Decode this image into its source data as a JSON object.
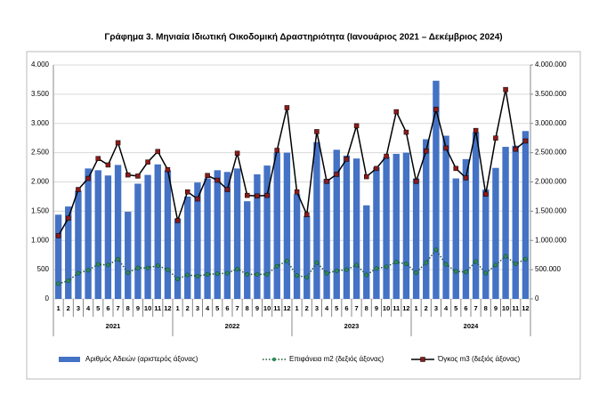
{
  "chart_data": {
    "type": "bar_line",
    "title": "Γράφημα 3. Μηνιαία Ιδιωτική Οικοδομική Δραστηριότητα (Ιανουάριος 2021 – Δεκέμβριος 2024)",
    "categories": [
      "1",
      "2",
      "3",
      "4",
      "5",
      "6",
      "7",
      "8",
      "9",
      "10",
      "11",
      "12",
      "1",
      "2",
      "3",
      "4",
      "5",
      "6",
      "7",
      "8",
      "9",
      "10",
      "11",
      "12",
      "1",
      "2",
      "3",
      "4",
      "5",
      "6",
      "7",
      "8",
      "9",
      "10",
      "11",
      "12",
      "1",
      "2",
      "3",
      "4",
      "5",
      "6",
      "7",
      "8",
      "9",
      "10",
      "11",
      "12"
    ],
    "year_labels": [
      "2021",
      "2022",
      "2023",
      "2024"
    ],
    "series": [
      {
        "name": "Αριθμός Αδειών (αριστερός άξονας)",
        "kind": "bar",
        "axis": "y",
        "color": "#4472c4",
        "values": [
          1440,
          1580,
          1850,
          2230,
          2200,
          2110,
          2290,
          1490,
          1970,
          2120,
          2300,
          2200,
          1370,
          1750,
          1990,
          2060,
          2200,
          2170,
          2230,
          1670,
          2130,
          2280,
          2500,
          2500,
          1790,
          1420,
          2680,
          2050,
          2550,
          2450,
          2400,
          1600,
          2250,
          2430,
          2480,
          2500,
          2060,
          2730,
          3730,
          2790,
          2060,
          2390,
          2850,
          1870,
          2240,
          2600,
          2620,
          2870
        ]
      },
      {
        "name": "Επιφάνεια m2 (δεξιός άξονας)",
        "kind": "dotted",
        "axis": "y2",
        "color": "#1e5631",
        "values": [
          260000,
          310000,
          440000,
          490000,
          590000,
          580000,
          680000,
          450000,
          530000,
          530000,
          570000,
          500000,
          340000,
          410000,
          390000,
          420000,
          430000,
          440000,
          510000,
          420000,
          420000,
          420000,
          560000,
          650000,
          400000,
          370000,
          620000,
          440000,
          480000,
          500000,
          580000,
          410000,
          520000,
          550000,
          630000,
          600000,
          450000,
          620000,
          840000,
          590000,
          470000,
          460000,
          640000,
          440000,
          580000,
          730000,
          600000,
          680000
        ]
      },
      {
        "name": "Όγκος m3 (δεξιός άξονας)",
        "kind": "line",
        "axis": "y2",
        "color": "#000000",
        "marker_color": "#8b1a1a",
        "values": [
          1080000,
          1380000,
          1870000,
          2060000,
          2400000,
          2290000,
          2670000,
          2120000,
          2100000,
          2340000,
          2520000,
          2210000,
          1340000,
          1830000,
          1710000,
          2110000,
          2030000,
          1870000,
          2490000,
          1770000,
          1760000,
          1770000,
          2540000,
          3270000,
          1830000,
          1440000,
          2860000,
          2010000,
          2130000,
          2390000,
          2960000,
          2090000,
          2230000,
          2440000,
          3200000,
          2850000,
          2010000,
          2530000,
          3240000,
          2580000,
          2230000,
          2070000,
          2880000,
          1790000,
          2750000,
          3580000,
          2560000,
          2700000
        ]
      }
    ],
    "ylim": [
      0,
      4000
    ],
    "yticks": [
      0,
      500,
      {
        "value": 1000,
        "label": "1.000"
      },
      {
        "value": 1500,
        "label": "1.500"
      },
      {
        "value": 2000,
        "label": "2.000"
      },
      {
        "value": 2500,
        "label": "2.500"
      },
      {
        "value": 3000,
        "label": "3.000"
      },
      {
        "value": 3500,
        "label": "3.500"
      },
      {
        "value": 4000,
        "label": "4.000"
      }
    ],
    "y2lim": [
      0,
      4000000
    ],
    "y2ticks": [
      0,
      {
        "value": 500000,
        "label": "500.000"
      },
      {
        "value": 1000000,
        "label": "1.000.000"
      },
      {
        "value": 1500000,
        "label": "1.500.000"
      },
      {
        "value": 2000000,
        "label": "2.000.000"
      },
      {
        "value": 2500000,
        "label": "2.500.000"
      },
      {
        "value": 3000000,
        "label": "3.000.000"
      },
      {
        "value": 3500000,
        "label": "3.500.000"
      },
      {
        "value": 4000000,
        "label": "4.000.000"
      }
    ],
    "grid": true,
    "legend": "bottom"
  }
}
